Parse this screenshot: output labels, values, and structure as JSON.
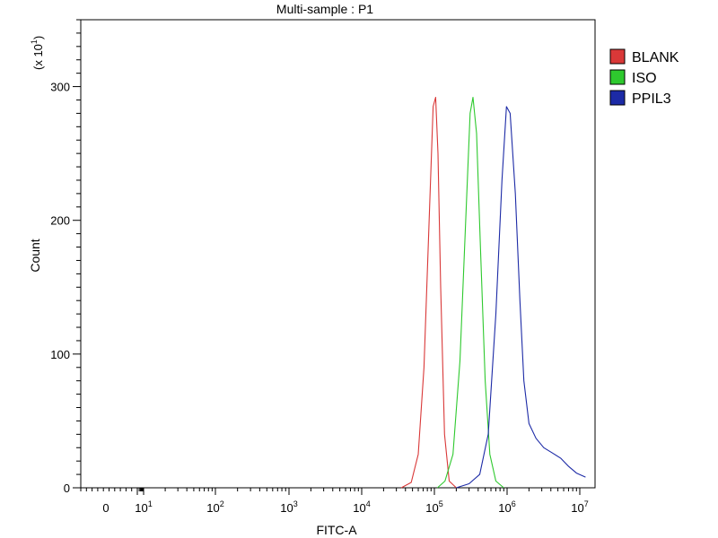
{
  "chart_data": {
    "type": "line",
    "title": "Multi-sample : P1",
    "xlabel": "FITC-A",
    "ylabel": "Count",
    "y_multiplier": "(x 10",
    "y_multiplier_exp": "1",
    "y_multiplier_close": ")",
    "x_scale": "biexponential (log)",
    "xlim": [
      0,
      12000000
    ],
    "ylim": [
      0,
      35
    ],
    "y_ticks": [
      {
        "value": 0,
        "label": "0"
      },
      {
        "value": 10,
        "label": "100"
      },
      {
        "value": 20,
        "label": "200"
      },
      {
        "value": 30,
        "label": "300"
      }
    ],
    "x_ticks": [
      {
        "value": 0,
        "base": "0",
        "exp": ""
      },
      {
        "value": 10,
        "base": "10",
        "exp": "1"
      },
      {
        "value": 100,
        "base": "10",
        "exp": "2"
      },
      {
        "value": 1000,
        "base": "10",
        "exp": "3"
      },
      {
        "value": 10000,
        "base": "10",
        "exp": "4"
      },
      {
        "value": 100000,
        "base": "10",
        "exp": "5"
      },
      {
        "value": 1000000,
        "base": "10",
        "exp": "6"
      },
      {
        "value": 10000000,
        "base": "10",
        "exp": "7"
      }
    ],
    "legend_position": "right",
    "grid": false,
    "series": [
      {
        "name": "BLANK",
        "color": "#d93838",
        "x": [
          35000,
          48000,
          60000,
          72000,
          84000,
          96000,
          104000,
          112000,
          122000,
          138000,
          160000,
          200000
        ],
        "y": [
          0,
          0.4,
          2.5,
          9.0,
          19.5,
          28.5,
          29.2,
          25.0,
          15.0,
          4.0,
          0.5,
          0
        ]
      },
      {
        "name": "ISO",
        "color": "#2ec92e",
        "x": [
          110000,
          140000,
          180000,
          225000,
          270000,
          310000,
          340000,
          380000,
          430000,
          500000,
          580000,
          700000,
          900000
        ],
        "y": [
          0,
          0.5,
          2.5,
          9.5,
          20.0,
          28.0,
          29.2,
          26.5,
          18.0,
          8.0,
          2.5,
          0.5,
          0
        ]
      },
      {
        "name": "PPIL3",
        "color": "#1c2aa6",
        "x": [
          200000,
          300000,
          420000,
          550000,
          700000,
          850000,
          980000,
          1100000,
          1300000,
          1500000,
          1700000,
          2000000,
          2500000,
          3200000,
          4200000,
          5500000,
          7000000,
          9000000,
          12000000
        ],
        "y": [
          0,
          0.3,
          1.0,
          4.0,
          13.0,
          23.0,
          28.5,
          28.0,
          22.0,
          14.0,
          8.0,
          4.8,
          3.7,
          3.0,
          2.6,
          2.2,
          1.6,
          1.1,
          0.8
        ]
      }
    ]
  }
}
